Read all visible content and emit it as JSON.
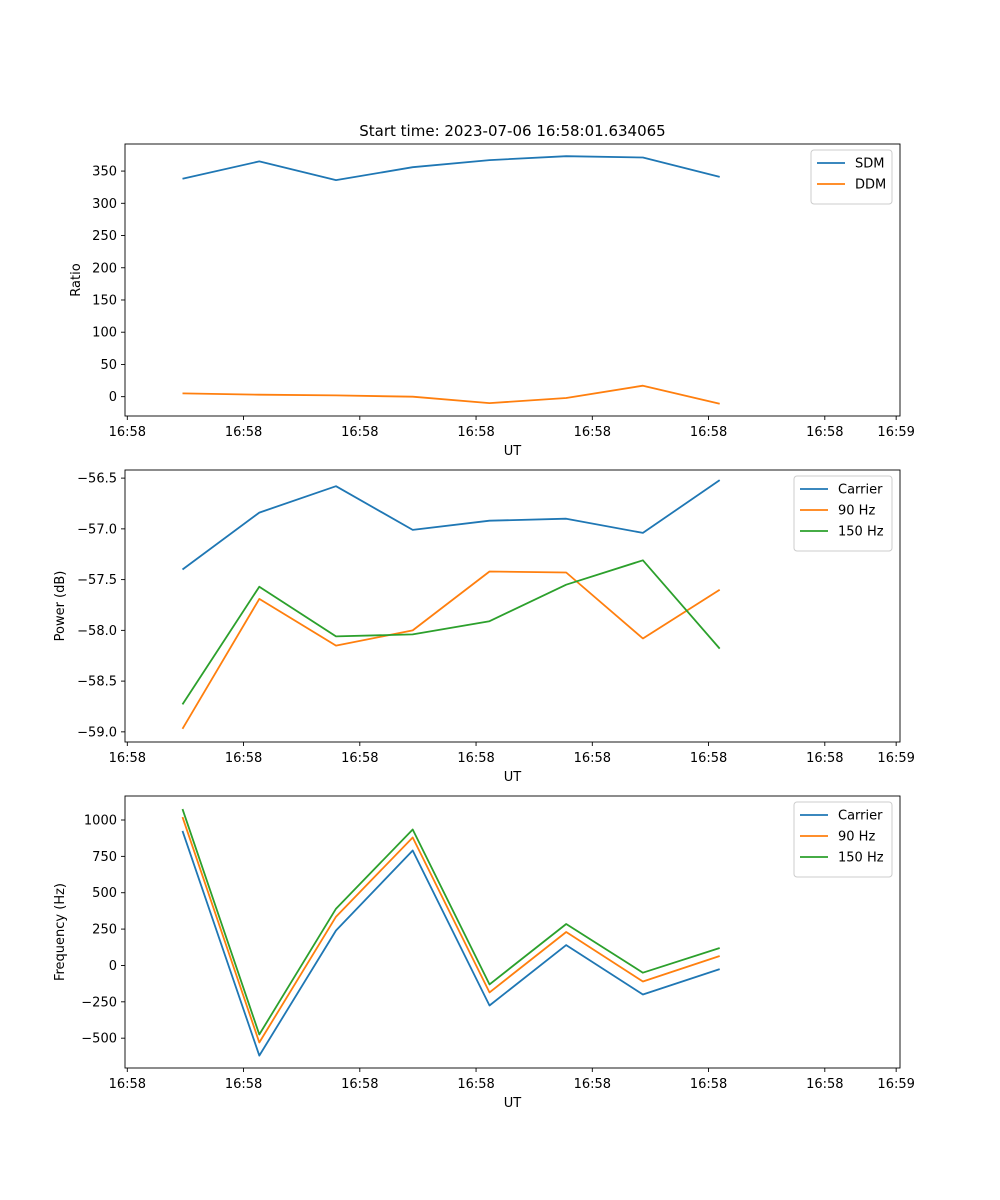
{
  "figure": {
    "title": "Start time: 2023-07-06 16:58:01.634065"
  },
  "chart_data": [
    {
      "type": "line",
      "title": "Start time: 2023-07-06 16:58:01.634065",
      "xlabel": "UT",
      "ylabel": "Ratio",
      "x_tick_labels": [
        "16:58",
        "16:58",
        "16:58",
        "16:58",
        "16:58",
        "16:58",
        "16:58",
        "16:59"
      ],
      "xlim": [
        -0.75,
        9.35
      ],
      "ylim": [
        -30,
        392
      ],
      "y_ticks": [
        0,
        50,
        100,
        150,
        200,
        250,
        300,
        350
      ],
      "y_tick_labels": [
        "0",
        "50",
        "100",
        "150",
        "200",
        "250",
        "300",
        "350"
      ],
      "x": [
        0,
        1,
        2,
        3,
        4,
        5,
        6,
        7
      ],
      "series": [
        {
          "name": "SDM",
          "color": "#1f77b4",
          "values": [
            338,
            365,
            336,
            356,
            367,
            373,
            371,
            341
          ]
        },
        {
          "name": "DDM",
          "color": "#ff7f0e",
          "values": [
            5,
            3,
            2,
            0,
            -10,
            -2,
            17,
            -11
          ]
        }
      ],
      "legend": "top-right",
      "grid": false
    },
    {
      "type": "line",
      "title": "",
      "xlabel": "UT",
      "ylabel": "Power (dB)",
      "x_tick_labels": [
        "16:58",
        "16:58",
        "16:58",
        "16:58",
        "16:58",
        "16:58",
        "16:58",
        "16:59"
      ],
      "xlim": [
        -0.75,
        9.35
      ],
      "ylim": [
        -59.1,
        -56.42
      ],
      "y_ticks": [
        -59.0,
        -58.5,
        -58.0,
        -57.5,
        -57.0,
        -56.5
      ],
      "y_tick_labels": [
        "−59.0",
        "−58.5",
        "−58.0",
        "−57.5",
        "−57.0",
        "−56.5"
      ],
      "x": [
        0,
        1,
        2,
        3,
        4,
        5,
        6,
        7
      ],
      "series": [
        {
          "name": "Carrier",
          "color": "#1f77b4",
          "values": [
            -57.4,
            -56.84,
            -56.58,
            -57.01,
            -56.92,
            -56.9,
            -57.04,
            -56.52
          ]
        },
        {
          "name": "90 Hz",
          "color": "#ff7f0e",
          "values": [
            -58.97,
            -57.69,
            -58.15,
            -58.0,
            -57.42,
            -57.43,
            -58.08,
            -57.6
          ]
        },
        {
          "name": "150 Hz",
          "color": "#2ca02c",
          "values": [
            -58.73,
            -57.57,
            -58.06,
            -58.04,
            -57.91,
            -57.55,
            -57.31,
            -58.18
          ]
        }
      ],
      "legend": "top-right",
      "grid": false
    },
    {
      "type": "line",
      "title": "",
      "xlabel": "UT",
      "ylabel": "Frequency (Hz)",
      "x_tick_labels": [
        "16:58",
        "16:58",
        "16:58",
        "16:58",
        "16:58",
        "16:58",
        "16:58",
        "16:59"
      ],
      "xlim": [
        -0.75,
        9.35
      ],
      "ylim": [
        -705,
        1165
      ],
      "y_ticks": [
        -500,
        -250,
        0,
        250,
        500,
        750,
        1000
      ],
      "y_tick_labels": [
        "−500",
        "−250",
        "0",
        "250",
        "500",
        "750",
        "1000"
      ],
      "x": [
        0,
        1,
        2,
        3,
        4,
        5,
        6,
        7
      ],
      "series": [
        {
          "name": "Carrier",
          "color": "#1f77b4",
          "values": [
            925,
            -620,
            240,
            790,
            -275,
            140,
            -200,
            -25
          ]
        },
        {
          "name": "90 Hz",
          "color": "#ff7f0e",
          "values": [
            1020,
            -530,
            335,
            880,
            -185,
            230,
            -110,
            65
          ]
        },
        {
          "name": "150 Hz",
          "color": "#2ca02c",
          "values": [
            1075,
            -475,
            390,
            935,
            -130,
            285,
            -50,
            120
          ]
        }
      ],
      "legend": "top-right",
      "grid": false
    }
  ]
}
